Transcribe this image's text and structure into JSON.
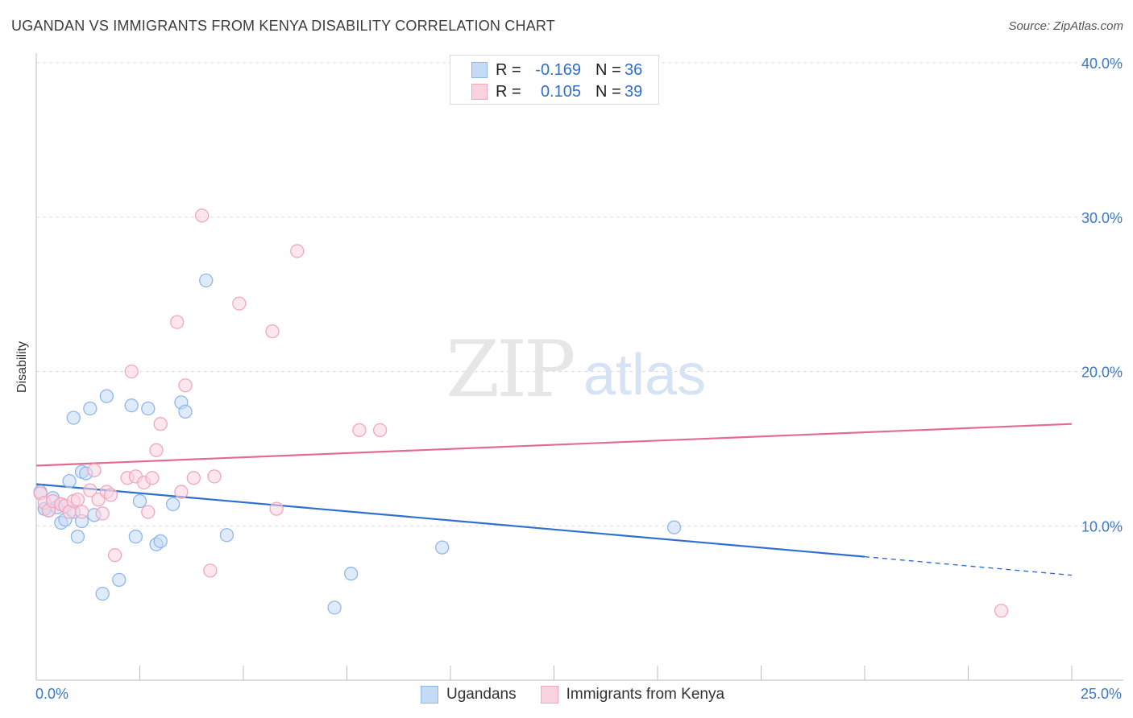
{
  "title": "UGANDAN VS IMMIGRANTS FROM KENYA DISABILITY CORRELATION CHART",
  "source": "Source: ZipAtlas.com",
  "watermark": {
    "zip": "ZIP",
    "atlas": "atlas"
  },
  "legend_top": {
    "rows": [
      {
        "r_label": "R =",
        "r_value": "-0.169",
        "n_label": "N =",
        "n_value": "36",
        "color": "#8fb8ea",
        "fill": "#c5dbf5"
      },
      {
        "r_label": "R =",
        "r_value": "0.105",
        "n_label": "N =",
        "n_value": "39",
        "color": "#f2a6c0",
        "fill": "#fbd3e0"
      }
    ]
  },
  "legend_bottom": [
    {
      "label": "Ugandans",
      "color": "#8fb8ea",
      "fill": "#c5dbf5"
    },
    {
      "label": "Immigrants from Kenya",
      "color": "#f2a6c0",
      "fill": "#fbd3e0"
    }
  ],
  "chart_data": {
    "type": "scatter",
    "title": "UGANDAN VS IMMIGRANTS FROM KENYA DISABILITY CORRELATION CHART",
    "xlabel": "",
    "ylabel": "Disability",
    "xlim": [
      0,
      25
    ],
    "ylim": [
      0,
      40
    ],
    "x_tick_labels": [
      "0.0%",
      "25.0%"
    ],
    "y_ticks": [
      10,
      20,
      30,
      40
    ],
    "y_tick_labels": [
      "10.0%",
      "20.0%",
      "30.0%",
      "40.0%"
    ],
    "grid": true,
    "series": [
      {
        "name": "Ugandans",
        "color": "#2f6fd0",
        "marker_fill": "#c5dbf5",
        "marker_edge": "#8fb8ea",
        "R": -0.169,
        "N": 36,
        "points": [
          [
            0.1,
            12.2
          ],
          [
            0.2,
            11.1
          ],
          [
            0.3,
            11.0
          ],
          [
            0.4,
            11.8
          ],
          [
            0.5,
            11.2
          ],
          [
            0.6,
            11.4
          ],
          [
            0.6,
            10.2
          ],
          [
            0.7,
            10.4
          ],
          [
            0.8,
            12.9
          ],
          [
            0.9,
            10.9
          ],
          [
            0.9,
            17.0
          ],
          [
            1.0,
            9.3
          ],
          [
            1.1,
            13.5
          ],
          [
            1.1,
            10.3
          ],
          [
            1.2,
            13.4
          ],
          [
            1.3,
            17.6
          ],
          [
            1.4,
            10.7
          ],
          [
            1.6,
            5.6
          ],
          [
            1.7,
            18.4
          ],
          [
            2.0,
            6.5
          ],
          [
            2.3,
            17.8
          ],
          [
            2.4,
            9.3
          ],
          [
            2.5,
            11.6
          ],
          [
            2.7,
            17.6
          ],
          [
            2.9,
            8.8
          ],
          [
            3.0,
            9.0
          ],
          [
            3.3,
            11.4
          ],
          [
            3.5,
            18.0
          ],
          [
            3.6,
            17.4
          ],
          [
            4.1,
            25.9
          ],
          [
            4.6,
            9.4
          ],
          [
            7.2,
            4.7
          ],
          [
            7.6,
            6.9
          ],
          [
            9.8,
            8.6
          ],
          [
            15.4,
            9.9
          ],
          [
            0.2,
            11.1
          ]
        ],
        "trend": {
          "solid": [
            [
              0.0,
              12.7
            ],
            [
              20.0,
              8.0
            ]
          ],
          "dashed": [
            [
              20.0,
              8.0
            ],
            [
              25.0,
              6.8
            ]
          ]
        }
      },
      {
        "name": "Immigrants from Kenya",
        "color": "#e46a96",
        "marker_fill": "#fbd3e0",
        "marker_edge": "#f2a6c0",
        "R": 0.105,
        "N": 39,
        "points": [
          [
            0.1,
            12.1
          ],
          [
            0.2,
            11.5
          ],
          [
            0.3,
            11.0
          ],
          [
            0.4,
            11.6
          ],
          [
            0.6,
            11.4
          ],
          [
            0.7,
            11.3
          ],
          [
            0.8,
            10.9
          ],
          [
            0.9,
            11.6
          ],
          [
            1.0,
            11.7
          ],
          [
            1.1,
            10.9
          ],
          [
            1.3,
            12.3
          ],
          [
            1.4,
            13.6
          ],
          [
            1.5,
            11.7
          ],
          [
            1.6,
            10.8
          ],
          [
            1.7,
            12.2
          ],
          [
            1.8,
            12.0
          ],
          [
            1.9,
            8.1
          ],
          [
            2.2,
            13.1
          ],
          [
            2.3,
            20.0
          ],
          [
            2.4,
            13.2
          ],
          [
            2.6,
            12.8
          ],
          [
            2.7,
            10.9
          ],
          [
            2.8,
            13.1
          ],
          [
            2.9,
            14.9
          ],
          [
            3.0,
            16.6
          ],
          [
            3.4,
            23.2
          ],
          [
            3.5,
            12.2
          ],
          [
            3.6,
            19.1
          ],
          [
            3.8,
            13.1
          ],
          [
            4.0,
            30.1
          ],
          [
            4.2,
            7.1
          ],
          [
            4.3,
            13.2
          ],
          [
            4.9,
            24.4
          ],
          [
            5.7,
            22.6
          ],
          [
            5.8,
            11.1
          ],
          [
            6.3,
            27.8
          ],
          [
            7.8,
            16.2
          ],
          [
            8.3,
            16.2
          ],
          [
            23.3,
            4.5
          ]
        ],
        "trend": {
          "solid": [
            [
              0.0,
              13.9
            ],
            [
              25.0,
              16.6
            ]
          ]
        }
      }
    ]
  }
}
